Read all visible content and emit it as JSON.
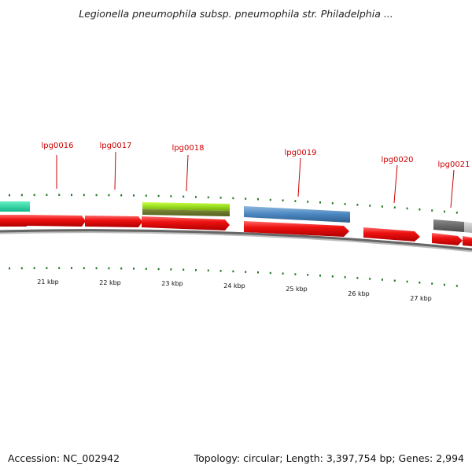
{
  "title": "Legionella pneumophila subsp. pneumophila str. Philadelphia ...",
  "footer": {
    "accession": "Accession: NC_002942",
    "summary": "Topology: circular; Length: 3,397,754 bp; Genes: 2,994"
  },
  "colors": {
    "gene_label": "#cc0000",
    "forward_arrow": "#ee1111",
    "tick": "#227722",
    "backbone": "#777777"
  },
  "gene_labels": [
    "lpg0016",
    "lpg0017",
    "lpg0018",
    "lpg0019",
    "lpg0020",
    "lpg0021"
  ],
  "kbp_labels": [
    "21 kbp",
    "22 kbp",
    "23 kbp",
    "24 kbp",
    "25 kbp",
    "26 kbp",
    "27 kbp"
  ]
}
